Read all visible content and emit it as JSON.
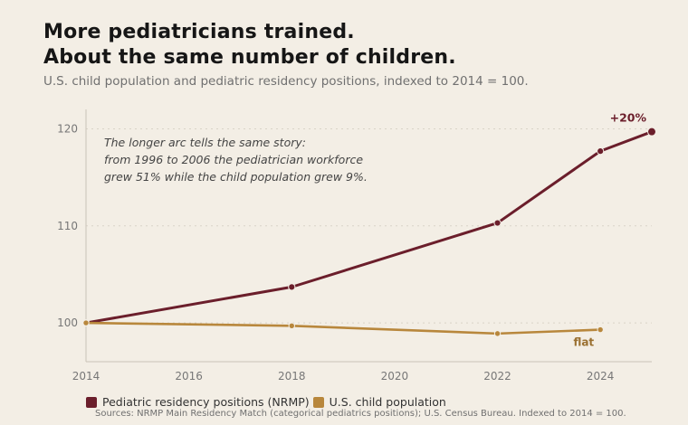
{
  "title_line1": "More pediatricians trained.",
  "title_line2": "About the same number of children.",
  "subtitle": "U.S. child population and pediatric residency positions, indexed to 2014 = 100.",
  "annotation": {
    "line1": "The longer arc tells the same story:",
    "line2": "from 1996 to 2006 the pediatrician workforce",
    "line3": "grew 51% while the child population grew 9%."
  },
  "source": "Sources: NRMP Main Residency Match (categorical pediatrics positions); U.S. Census Bureau. Indexed to 2014 = 100.",
  "colors": {
    "residency": "#6b1e2b",
    "population": "#b8873c",
    "grid": "#d9d3c8",
    "axis": "#c9c3b8"
  },
  "chart_data": {
    "type": "line",
    "xlim": [
      2014,
      2025
    ],
    "ylim": [
      96,
      122
    ],
    "x_ticks": [
      2014,
      2016,
      2018,
      2020,
      2022,
      2024
    ],
    "y_ticks": [
      100,
      110,
      120
    ],
    "grid": true,
    "legend_placement": "bottom-left",
    "series": [
      {
        "name": "Pediatric residency positions (NRMP)",
        "color": "#6b1e2b",
        "x": [
          2014,
          2018,
          2022,
          2024,
          2025
        ],
        "y": [
          100,
          103.7,
          110.3,
          117.7,
          119.7
        ],
        "end_label": "+20%"
      },
      {
        "name": "U.S. child population",
        "color": "#b8873c",
        "x": [
          2014,
          2018,
          2022,
          2024
        ],
        "y": [
          100,
          99.7,
          98.9,
          99.3
        ],
        "end_label": "flat"
      }
    ]
  }
}
